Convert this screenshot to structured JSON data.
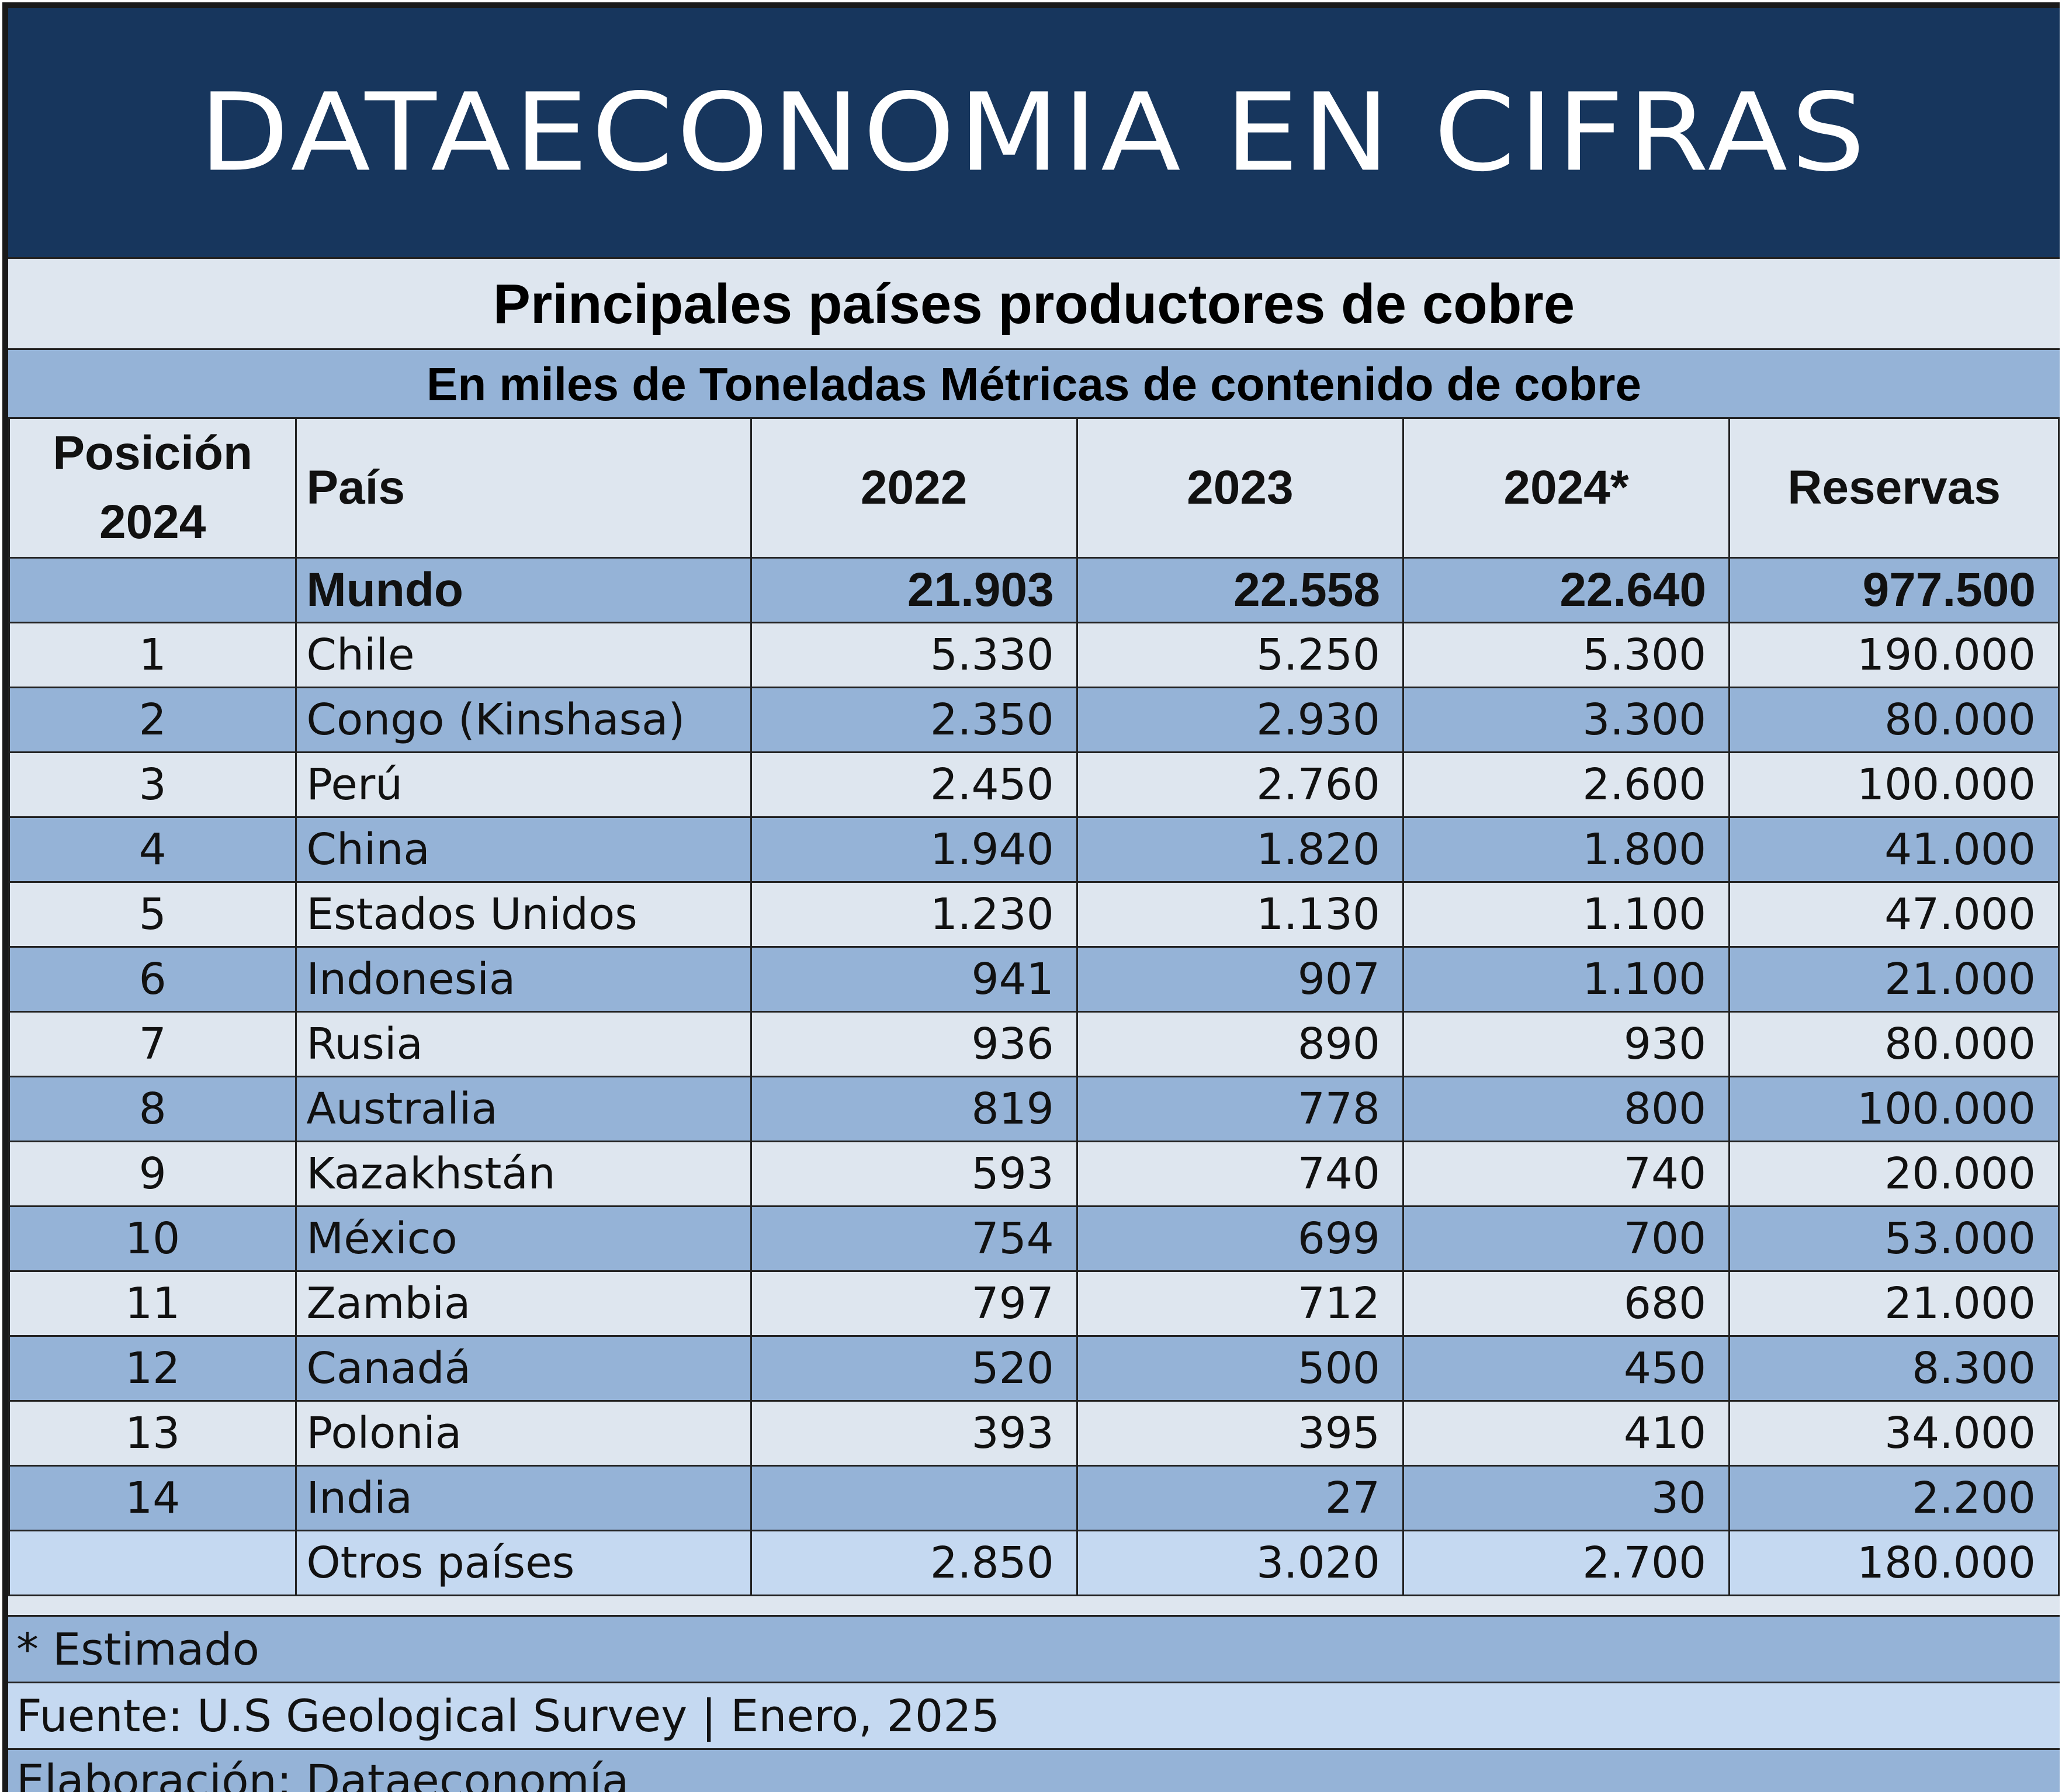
{
  "banner": {
    "title": "DATAECONOMIA EN CIFRAS"
  },
  "chart_data": {
    "type": "table",
    "title": "Principales países productores de cobre",
    "subtitle": "En miles de Toneladas Métricas de contenido de cobre",
    "columns": [
      "Posición 2024",
      "País",
      "2022",
      "2023",
      "2024*",
      "Reservas"
    ],
    "world": {
      "label": "Mundo",
      "y2022": "21.903",
      "y2023": "22.558",
      "y2024": "22.640",
      "reserves": "977.500"
    },
    "rows": [
      {
        "pos": "1",
        "country": "Chile",
        "y2022": "5.330",
        "y2023": "5.250",
        "y2024": "5.300",
        "reserves": "190.000"
      },
      {
        "pos": "2",
        "country": "Congo (Kinshasa)",
        "y2022": "2.350",
        "y2023": "2.930",
        "y2024": "3.300",
        "reserves": "80.000"
      },
      {
        "pos": "3",
        "country": "Perú",
        "y2022": "2.450",
        "y2023": "2.760",
        "y2024": "2.600",
        "reserves": "100.000"
      },
      {
        "pos": "4",
        "country": "China",
        "y2022": "1.940",
        "y2023": "1.820",
        "y2024": "1.800",
        "reserves": "41.000"
      },
      {
        "pos": "5",
        "country": "Estados Unidos",
        "y2022": "1.230",
        "y2023": "1.130",
        "y2024": "1.100",
        "reserves": "47.000"
      },
      {
        "pos": "6",
        "country": "Indonesia",
        "y2022": "941",
        "y2023": "907",
        "y2024": "1.100",
        "reserves": "21.000"
      },
      {
        "pos": "7",
        "country": "Rusia",
        "y2022": "936",
        "y2023": "890",
        "y2024": "930",
        "reserves": "80.000"
      },
      {
        "pos": "8",
        "country": "Australia",
        "y2022": "819",
        "y2023": "778",
        "y2024": "800",
        "reserves": "100.000"
      },
      {
        "pos": "9",
        "country": "Kazakhstán",
        "y2022": "593",
        "y2023": "740",
        "y2024": "740",
        "reserves": "20.000"
      },
      {
        "pos": "10",
        "country": "México",
        "y2022": "754",
        "y2023": "699",
        "y2024": "700",
        "reserves": "53.000"
      },
      {
        "pos": "11",
        "country": "Zambia",
        "y2022": "797",
        "y2023": "712",
        "y2024": "680",
        "reserves": "21.000"
      },
      {
        "pos": "12",
        "country": "Canadá",
        "y2022": "520",
        "y2023": "500",
        "y2024": "450",
        "reserves": "8.300"
      },
      {
        "pos": "13",
        "country": "Polonia",
        "y2022": "393",
        "y2023": "395",
        "y2024": "410",
        "reserves": "34.000"
      },
      {
        "pos": "14",
        "country": "India",
        "y2022": "",
        "y2023": "27",
        "y2024": "30",
        "reserves": "2.200"
      },
      {
        "pos": "",
        "country": "Otros países",
        "y2022": "2.850",
        "y2023": "3.020",
        "y2024": "2.700",
        "reserves": "180.000"
      }
    ]
  },
  "header_lines": {
    "pos_line1": "Posición",
    "pos_line2": "2024"
  },
  "footer": {
    "note": "* Estimado",
    "source": "Fuente: U.S Geological Survey | Enero, 2025",
    "credit": "Elaboración: Dataeconomía"
  },
  "colors": {
    "banner": "#17365d",
    "row_light": "#dee6ef",
    "row_dark": "#95b3d7",
    "row_others": "#c5d9f1"
  }
}
